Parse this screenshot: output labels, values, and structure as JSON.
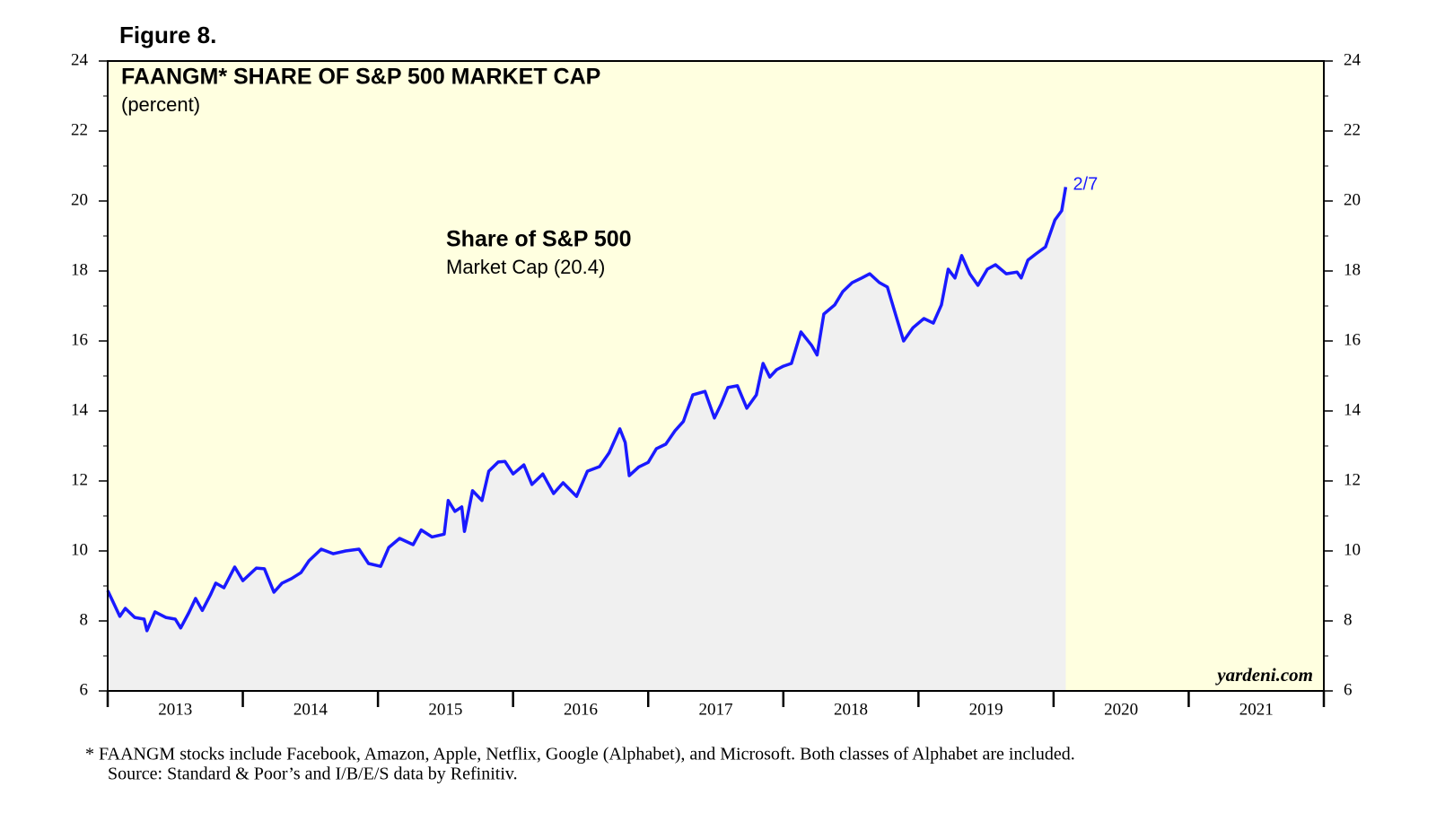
{
  "chart_data": {
    "type": "area-line",
    "figure_label": "Figure 8.",
    "title": "FAANGM* SHARE OF S&P 500 MARKET CAP",
    "subtitle": "(percent)",
    "annotation_title": "Share of S&P 500",
    "annotation_text": "Market Cap (20.4)",
    "end_label": "2/7",
    "watermark": "yardeni.com",
    "footnote": "*   FAANGM stocks include Facebook, Amazon, Apple, Netflix, Google (Alphabet), and Microsoft. Both classes of Alphabet are included.",
    "source": "Source: Standard & Poor’s and I/B/E/S data by Refinitiv.",
    "xlim": [
      2013,
      2022
    ],
    "xticks": [
      {
        "value": 2013.5,
        "label": "2013"
      },
      {
        "value": 2014.5,
        "label": "2014"
      },
      {
        "value": 2015.5,
        "label": "2015"
      },
      {
        "value": 2016.5,
        "label": "2016"
      },
      {
        "value": 2017.5,
        "label": "2017"
      },
      {
        "value": 2018.5,
        "label": "2018"
      },
      {
        "value": 2019.5,
        "label": "2019"
      },
      {
        "value": 2020.5,
        "label": "2020"
      },
      {
        "value": 2021.5,
        "label": "2021"
      }
    ],
    "ylim": [
      6,
      24
    ],
    "yticks": [
      6,
      8,
      10,
      12,
      14,
      16,
      18,
      20,
      22,
      24
    ],
    "yminorticks": [
      7,
      9,
      11,
      13,
      15,
      17,
      19,
      21,
      23
    ],
    "x": [
      2013.0,
      2013.09,
      2013.13,
      2013.2,
      2013.27,
      2013.29,
      2013.35,
      2013.43,
      2013.5,
      2013.54,
      2013.6,
      2013.65,
      2013.7,
      2013.76,
      2013.8,
      2013.86,
      2013.94,
      2014.0,
      2014.1,
      2014.16,
      2014.23,
      2014.29,
      2014.36,
      2014.43,
      2014.49,
      2014.58,
      2014.67,
      2014.76,
      2014.86,
      2014.93,
      2015.02,
      2015.08,
      2015.16,
      2015.26,
      2015.32,
      2015.4,
      2015.49,
      2015.52,
      2015.57,
      2015.62,
      2015.64,
      2015.7,
      2015.77,
      2015.82,
      2015.89,
      2015.94,
      2016.0,
      2016.08,
      2016.14,
      2016.22,
      2016.3,
      2016.37,
      2016.47,
      2016.55,
      2016.64,
      2016.71,
      2016.79,
      2016.83,
      2016.86,
      2016.93,
      2017.0,
      2017.06,
      2017.13,
      2017.2,
      2017.26,
      2017.33,
      2017.42,
      2017.49,
      2017.54,
      2017.59,
      2017.66,
      2017.73,
      2017.8,
      2017.85,
      2017.9,
      2017.95,
      2018.0,
      2018.06,
      2018.13,
      2018.21,
      2018.25,
      2018.3,
      2018.38,
      2018.44,
      2018.51,
      2018.58,
      2018.64,
      2018.71,
      2018.77,
      2018.84,
      2018.89,
      2018.96,
      2019.04,
      2019.11,
      2019.17,
      2019.22,
      2019.27,
      2019.32,
      2019.38,
      2019.44,
      2019.51,
      2019.57,
      2019.65,
      2019.73,
      2019.76,
      2019.81,
      2019.87,
      2019.94,
      2020.01,
      2020.06,
      2020.09
    ],
    "series": [
      {
        "name": "Share of S&P 500",
        "color": "#1a1aff",
        "fill": "#f0f0f0",
        "values": [
          8.87,
          8.13,
          8.36,
          8.1,
          8.05,
          7.72,
          8.26,
          8.1,
          8.05,
          7.8,
          8.23,
          8.64,
          8.3,
          8.74,
          9.08,
          8.95,
          9.54,
          9.15,
          9.51,
          9.49,
          8.82,
          9.08,
          9.21,
          9.38,
          9.72,
          10.05,
          9.92,
          10.0,
          10.05,
          9.64,
          9.56,
          10.1,
          10.36,
          10.18,
          10.6,
          10.4,
          10.48,
          11.44,
          11.13,
          11.26,
          10.56,
          11.72,
          11.44,
          12.28,
          12.54,
          12.56,
          12.2,
          12.46,
          11.9,
          12.2,
          11.64,
          11.95,
          11.56,
          12.28,
          12.41,
          12.8,
          13.49,
          13.1,
          12.15,
          12.4,
          12.53,
          12.92,
          13.05,
          13.44,
          13.7,
          14.46,
          14.56,
          13.8,
          14.2,
          14.67,
          14.72,
          14.08,
          14.46,
          15.36,
          14.97,
          15.18,
          15.28,
          15.36,
          16.26,
          15.87,
          15.6,
          16.77,
          17.03,
          17.41,
          17.67,
          17.8,
          17.92,
          17.67,
          17.54,
          16.64,
          16.0,
          16.38,
          16.64,
          16.51,
          17.03,
          18.05,
          17.8,
          18.44,
          17.92,
          17.59,
          18.05,
          18.18,
          17.92,
          17.97,
          17.8,
          18.31,
          18.49,
          18.69,
          19.46,
          19.72,
          20.4
        ]
      }
    ]
  }
}
